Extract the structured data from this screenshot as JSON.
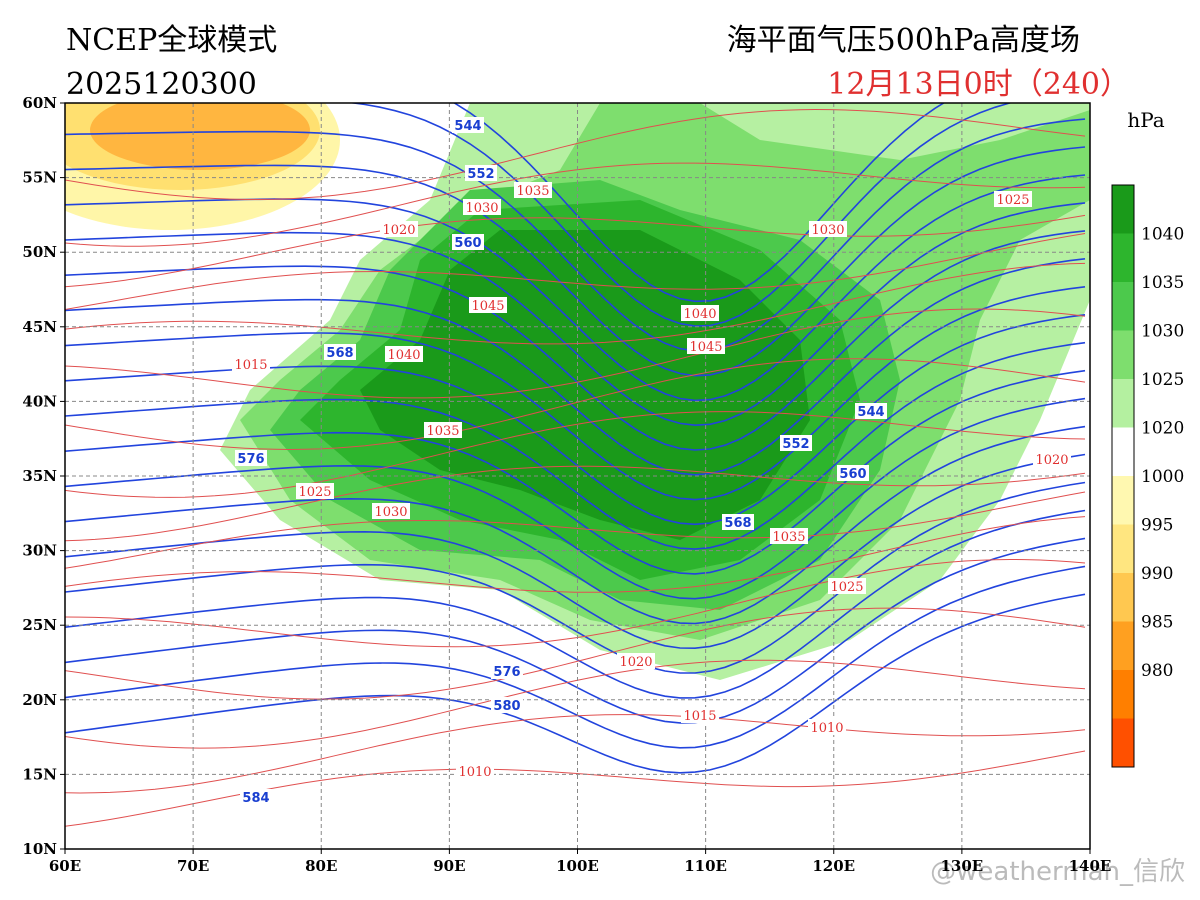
{
  "header": {
    "title": "NCEP全球模式",
    "run": "2025120300",
    "product": "海平面气压500hPa高度场",
    "valid": "12月13日0时（240）"
  },
  "colorbar": {
    "unit": "hPa",
    "labels": [
      "1040",
      "1035",
      "1030",
      "1025",
      "1020",
      "1000",
      "995",
      "990",
      "985",
      "980"
    ]
  },
  "axes": {
    "lat_labels": [
      "60N",
      "55N",
      "50N",
      "45N",
      "40N",
      "35N",
      "30N",
      "25N",
      "20N",
      "15N",
      "10N"
    ],
    "lon_labels": [
      "60E",
      "70E",
      "80E",
      "90E",
      "100E",
      "110E",
      "120E",
      "130E",
      "140E"
    ]
  },
  "height_labels": [
    "544",
    "552",
    "560",
    "568",
    "576",
    "576",
    "580",
    "584",
    "544",
    "552",
    "560",
    "568"
  ],
  "pressure_labels": [
    "1035",
    "1030",
    "1020",
    "1045",
    "1040",
    "1015",
    "1035",
    "1025",
    "1030",
    "1040",
    "1045",
    "1030",
    "1025",
    "1020",
    "1035",
    "1025",
    "1020",
    "1015",
    "1010",
    "1010"
  ],
  "watermark": "@weatherman_信欣"
}
